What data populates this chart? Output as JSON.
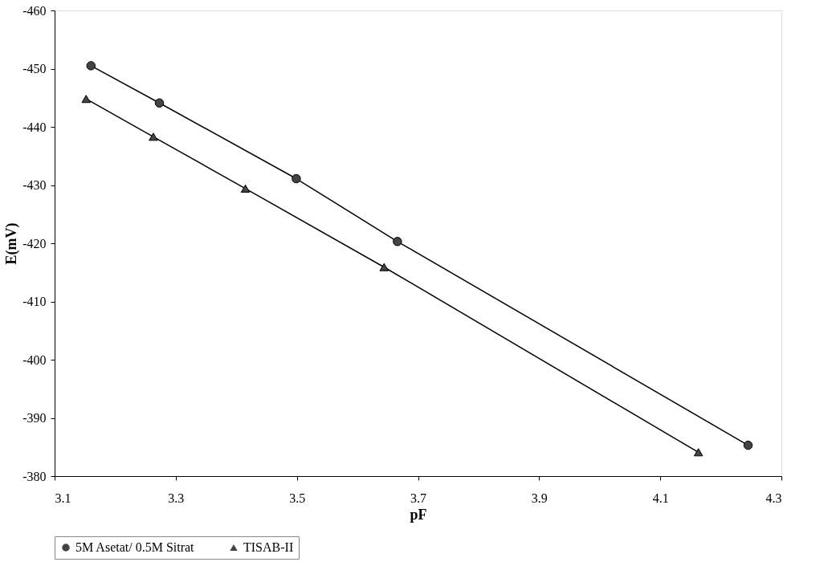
{
  "chart_data": {
    "type": "line",
    "xlabel": "pF",
    "ylabel": "E(mV)",
    "xlim": [
      3.1,
      4.3
    ],
    "xticks": [
      3.1,
      3.3,
      3.5,
      3.7,
      3.9,
      4.1,
      4.3
    ],
    "ylim": [
      -380,
      -460
    ],
    "yticks": [
      -460,
      -450,
      -440,
      -430,
      -420,
      -410,
      -400,
      -390,
      -380
    ],
    "grid": false,
    "legend": "bottom",
    "line_style": "solid",
    "series": [
      {
        "name": "5M Asetat/ 0.5M Sitrat",
        "color": "#000000",
        "marker": "circle",
        "x": [
          3.16,
          3.273,
          3.499,
          3.666,
          4.245
        ],
        "values": [
          -450.5,
          -444.1,
          -431.1,
          -420.3,
          -385.3
        ]
      },
      {
        "name": "TISAB-II",
        "color": "#000000",
        "marker": "triangle",
        "x": [
          3.152,
          3.263,
          3.415,
          3.644,
          4.163
        ],
        "values": [
          -444.8,
          -438.3,
          -429.4,
          -415.9,
          -384.1
        ]
      }
    ]
  }
}
